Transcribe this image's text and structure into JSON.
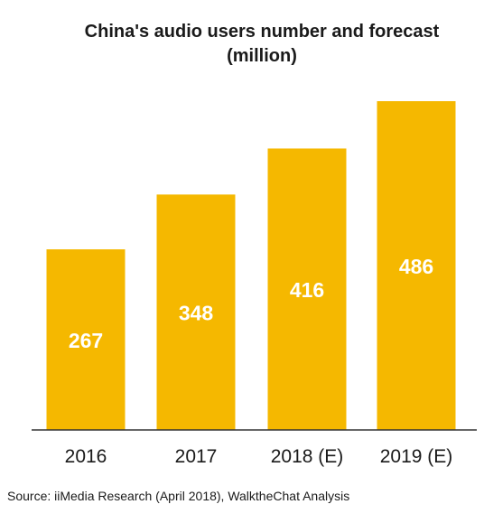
{
  "chart_data": {
    "type": "bar",
    "title_line1": "China's audio users number and forecast",
    "title_line2": "(million)",
    "categories": [
      "2016",
      "2017",
      "2018 (E)",
      "2019 (E)"
    ],
    "values": [
      267,
      348,
      416,
      486
    ],
    "value_labels": [
      "267",
      "348",
      "416",
      "486"
    ],
    "bar_color": "#F5B800",
    "value_label_color": "#FFFFFF",
    "ylim": [
      0,
      486
    ],
    "xlabel": "",
    "ylabel": "",
    "grid": false,
    "legend": "none"
  },
  "source": "Source:  iiMedia Research (April 2018), WalktheChat Analysis"
}
